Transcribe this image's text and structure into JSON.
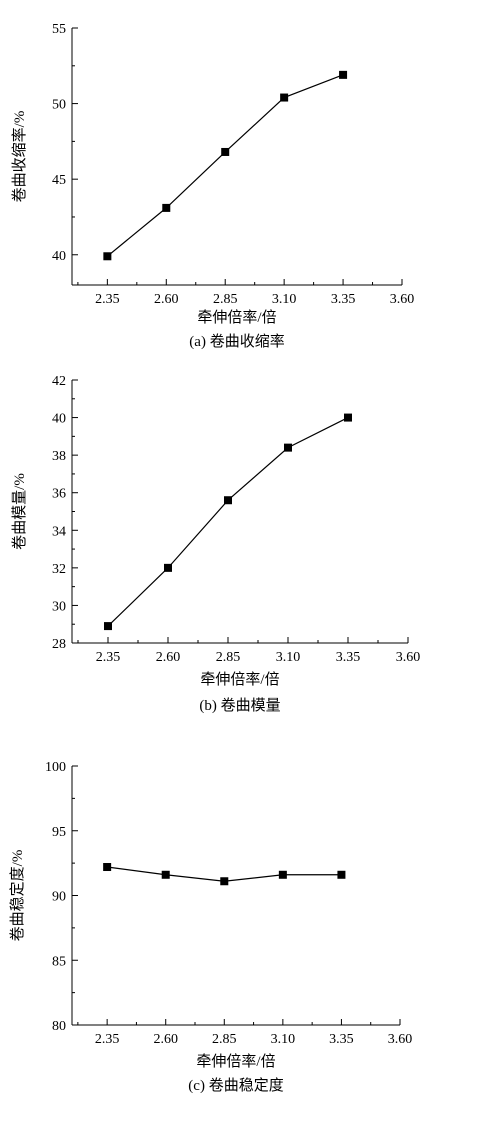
{
  "chart_data": [
    {
      "type": "line",
      "caption": "(a) 卷曲收缩率",
      "xlabel": "牵伸倍率/倍",
      "ylabel": "卷曲收缩率/%",
      "xlim": [
        2.2,
        3.6
      ],
      "ylim": [
        38,
        55
      ],
      "xticks": [
        "2.35",
        "2.60",
        "2.85",
        "3.10",
        "3.35",
        "3.60"
      ],
      "yticks": [
        "40",
        "45",
        "50",
        "55"
      ],
      "x": [
        2.35,
        2.6,
        2.85,
        3.1,
        3.35
      ],
      "values": [
        39.9,
        43.1,
        46.8,
        50.4,
        51.9
      ]
    },
    {
      "type": "line",
      "caption": "(b) 卷曲模量",
      "xlabel": "牵伸倍率/倍",
      "ylabel": "卷曲模量/%",
      "xlim": [
        2.2,
        3.6
      ],
      "ylim": [
        28,
        42
      ],
      "xticks": [
        "2.35",
        "2.60",
        "2.85",
        "3.10",
        "3.35",
        "3.60"
      ],
      "yticks": [
        "28",
        "30",
        "32",
        "34",
        "36",
        "38",
        "40",
        "42"
      ],
      "x": [
        2.35,
        2.6,
        2.85,
        3.1,
        3.35
      ],
      "values": [
        28.9,
        32.0,
        35.6,
        38.4,
        40.0
      ]
    },
    {
      "type": "line",
      "caption": "(c) 卷曲稳定度",
      "xlabel": "牵伸倍率/倍",
      "ylabel": "卷曲稳定度/%",
      "xlim": [
        2.2,
        3.6
      ],
      "ylim": [
        80,
        100
      ],
      "xticks": [
        "2.35",
        "2.60",
        "2.85",
        "3.10",
        "3.35",
        "3.60"
      ],
      "yticks": [
        "80",
        "85",
        "90",
        "95",
        "100"
      ],
      "x": [
        2.35,
        2.6,
        2.85,
        3.1,
        3.35
      ],
      "values": [
        92.2,
        91.6,
        91.1,
        91.6,
        91.6
      ]
    }
  ]
}
